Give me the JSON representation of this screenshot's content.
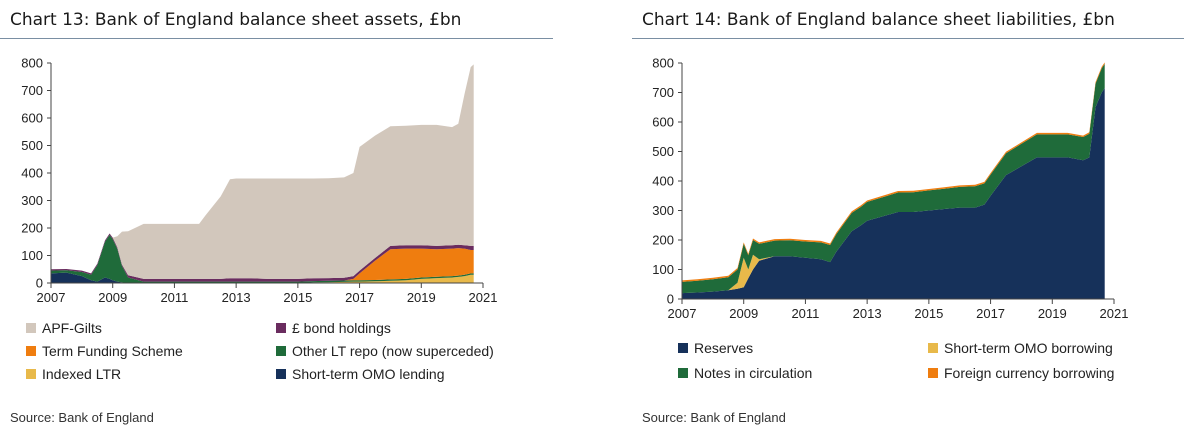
{
  "charts": [
    {
      "title": "Chart 13: Bank of England balance sheet assets, £bn",
      "source": "Source: Bank of England",
      "legend": [
        {
          "label": "APF-Gilts",
          "color": "#d2c7bc"
        },
        {
          "label": "£ bond holdings",
          "color": "#6a2c5f"
        },
        {
          "label": "Term Funding Scheme",
          "color": "#ef7d0f"
        },
        {
          "label": "Other LT repo (now superceded)",
          "color": "#1f6b3a"
        },
        {
          "label": "Indexed LTR",
          "color": "#e8b94a"
        },
        {
          "label": "Short-term OMO lending",
          "color": "#16315a"
        }
      ]
    },
    {
      "title": "Chart 14: Bank of England balance sheet liabilities, £bn",
      "source": "Source: Bank of England",
      "legend": [
        {
          "label": "Reserves",
          "color": "#16315a"
        },
        {
          "label": "Short-term OMO borrowing",
          "color": "#e8b94a"
        },
        {
          "label": "Notes in circulation",
          "color": "#1f6b3a"
        },
        {
          "label": "Foreign currency borrowing",
          "color": "#ef7d0f"
        }
      ]
    }
  ],
  "chart_data": [
    {
      "type": "area",
      "stacked": true,
      "title": "Chart 13: Bank of England balance sheet assets, £bn",
      "xlabel": "",
      "ylabel": "",
      "xlim": [
        2007,
        2021
      ],
      "ylim": [
        0,
        800
      ],
      "x_ticks": [
        "2007",
        "2009",
        "2011",
        "2013",
        "2015",
        "2017",
        "2019",
        "2021"
      ],
      "y_ticks": [
        "0",
        "100",
        "200",
        "300",
        "400",
        "500",
        "600",
        "700",
        "800"
      ],
      "x": [
        2007.0,
        2007.5,
        2008.0,
        2008.3,
        2008.5,
        2008.75,
        2008.9,
        2009.0,
        2009.15,
        2009.3,
        2009.5,
        2010.0,
        2010.5,
        2011.0,
        2011.5,
        2011.8,
        2012.0,
        2012.5,
        2012.8,
        2013.0,
        2013.5,
        2014.0,
        2014.5,
        2015.0,
        2015.5,
        2016.0,
        2016.5,
        2016.8,
        2017.0,
        2017.5,
        2018.0,
        2018.5,
        2019.0,
        2019.5,
        2020.0,
        2020.2,
        2020.4,
        2020.6,
        2020.7
      ],
      "series": [
        {
          "name": "Short-term OMO lending",
          "color": "#16315a",
          "values": [
            35,
            38,
            25,
            10,
            5,
            20,
            15,
            10,
            5,
            2,
            0,
            0,
            0,
            0,
            0,
            0,
            0,
            0,
            0,
            0,
            0,
            0,
            0,
            0,
            0,
            0,
            0,
            0,
            0,
            0,
            0,
            0,
            0,
            0,
            0,
            0,
            0,
            0,
            0
          ]
        },
        {
          "name": "Indexed LTR",
          "color": "#e8b94a",
          "values": [
            0,
            0,
            0,
            0,
            0,
            0,
            0,
            0,
            0,
            0,
            0,
            0,
            0,
            0,
            0,
            0,
            0,
            0,
            0,
            0,
            0,
            0,
            0,
            0,
            2,
            3,
            4,
            5,
            5,
            6,
            8,
            10,
            15,
            18,
            20,
            22,
            25,
            30,
            30
          ]
        },
        {
          "name": "Other LT repo (now superceded)",
          "color": "#1f6b3a",
          "values": [
            10,
            8,
            15,
            20,
            60,
            130,
            160,
            150,
            120,
            60,
            20,
            5,
            5,
            5,
            5,
            5,
            5,
            5,
            5,
            5,
            5,
            5,
            5,
            5,
            5,
            5,
            5,
            5,
            5,
            5,
            5,
            5,
            5,
            5,
            5,
            5,
            5,
            5,
            5
          ]
        },
        {
          "name": "Term Funding Scheme",
          "color": "#ef7d0f",
          "values": [
            0,
            0,
            0,
            0,
            0,
            0,
            0,
            0,
            0,
            0,
            0,
            0,
            0,
            0,
            0,
            0,
            0,
            0,
            0,
            0,
            0,
            0,
            0,
            0,
            0,
            0,
            0,
            5,
            25,
            70,
            110,
            110,
            105,
            100,
            100,
            100,
            95,
            85,
            85
          ]
        },
        {
          "name": "£ bond holdings",
          "color": "#6a2c5f",
          "values": [
            5,
            5,
            5,
            5,
            5,
            5,
            5,
            5,
            5,
            5,
            8,
            10,
            10,
            10,
            10,
            10,
            10,
            10,
            12,
            12,
            12,
            10,
            10,
            10,
            10,
            10,
            10,
            10,
            10,
            10,
            12,
            12,
            12,
            12,
            12,
            12,
            12,
            15,
            15
          ]
        },
        {
          "name": "APF-Gilts",
          "color": "#d2c7bc",
          "values": [
            0,
            0,
            0,
            0,
            0,
            0,
            0,
            0,
            40,
            120,
            160,
            200,
            200,
            200,
            200,
            200,
            230,
            300,
            360,
            363,
            363,
            365,
            365,
            365,
            363,
            363,
            365,
            375,
            450,
            445,
            435,
            435,
            438,
            440,
            430,
            440,
            550,
            650,
            660
          ]
        }
      ]
    },
    {
      "type": "area",
      "stacked": true,
      "title": "Chart 14: Bank of England balance sheet liabilities, £bn",
      "xlabel": "",
      "ylabel": "",
      "xlim": [
        2007,
        2021
      ],
      "ylim": [
        0,
        800
      ],
      "x_ticks": [
        "2007",
        "2009",
        "2011",
        "2013",
        "2015",
        "2017",
        "2019",
        "2021"
      ],
      "y_ticks": [
        "0",
        "100",
        "200",
        "300",
        "400",
        "500",
        "600",
        "700",
        "800"
      ],
      "x": [
        2007.0,
        2007.5,
        2008.0,
        2008.5,
        2008.8,
        2009.0,
        2009.15,
        2009.3,
        2009.5,
        2010.0,
        2010.5,
        2011.0,
        2011.5,
        2011.8,
        2012.0,
        2012.5,
        2012.8,
        2013.0,
        2013.5,
        2014.0,
        2014.5,
        2015.0,
        2015.5,
        2016.0,
        2016.5,
        2016.8,
        2017.0,
        2017.5,
        2018.0,
        2018.5,
        2019.0,
        2019.5,
        2020.0,
        2020.2,
        2020.4,
        2020.6,
        2020.7
      ],
      "series": [
        {
          "name": "Reserves",
          "color": "#16315a",
          "values": [
            20,
            22,
            25,
            30,
            35,
            40,
            70,
            100,
            130,
            145,
            145,
            140,
            135,
            125,
            160,
            230,
            250,
            265,
            280,
            295,
            295,
            300,
            305,
            310,
            310,
            320,
            350,
            420,
            450,
            480,
            480,
            480,
            470,
            480,
            650,
            700,
            715
          ]
        },
        {
          "name": "Short-term OMO borrowing",
          "color": "#e8b94a",
          "values": [
            0,
            0,
            0,
            0,
            20,
            100,
            30,
            50,
            5,
            0,
            0,
            0,
            0,
            0,
            0,
            0,
            0,
            0,
            0,
            0,
            0,
            0,
            0,
            0,
            0,
            0,
            0,
            0,
            0,
            0,
            0,
            0,
            0,
            0,
            0,
            0,
            0
          ]
        },
        {
          "name": "Notes in circulation",
          "color": "#1f6b3a",
          "values": [
            38,
            40,
            42,
            44,
            45,
            47,
            48,
            50,
            52,
            53,
            54,
            55,
            57,
            58,
            60,
            62,
            63,
            64,
            65,
            66,
            67,
            68,
            69,
            70,
            72,
            72,
            72,
            74,
            76,
            78,
            78,
            78,
            79,
            80,
            80,
            82,
            82
          ]
        },
        {
          "name": "Foreign currency borrowing",
          "color": "#ef7d0f",
          "values": [
            5,
            5,
            5,
            5,
            5,
            5,
            5,
            5,
            5,
            5,
            5,
            5,
            5,
            5,
            5,
            5,
            5,
            5,
            5,
            5,
            5,
            5,
            5,
            5,
            5,
            5,
            5,
            5,
            5,
            5,
            5,
            5,
            5,
            5,
            5,
            5,
            5
          ]
        }
      ]
    }
  ]
}
